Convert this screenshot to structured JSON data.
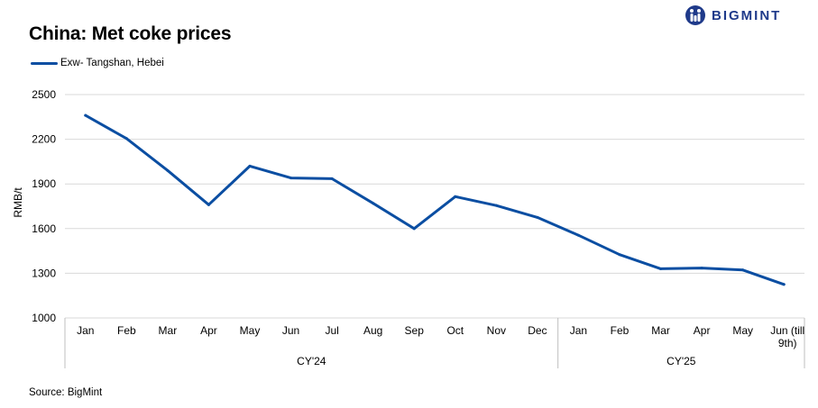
{
  "brand": {
    "name": "BIGMINT",
    "color": "#1f3a8a"
  },
  "title": "China: Met coke prices",
  "source": "Source: BigMint",
  "chart_data": {
    "type": "line",
    "title": "China: Met coke prices",
    "ylabel": "RMB/t",
    "xlabel": "",
    "ylim": [
      1000,
      2500
    ],
    "yticks": [
      1000,
      1300,
      1600,
      1900,
      2200,
      2500
    ],
    "grid": true,
    "legend_position": "top-left",
    "categories": [
      "Jan",
      "Feb",
      "Mar",
      "Apr",
      "May",
      "Jun",
      "Jul",
      "Aug",
      "Sep",
      "Oct",
      "Nov",
      "Dec",
      "Jan",
      "Feb",
      "Mar",
      "Apr",
      "May",
      "Jun (till 9th)"
    ],
    "category_groups": [
      {
        "label": "CY'24",
        "count": 12
      },
      {
        "label": "CY'25",
        "count": 6
      }
    ],
    "series": [
      {
        "name": "Exw- Tangshan, Hebei",
        "color": "#0b4ea2",
        "values": [
          2360,
          2205,
          1990,
          1760,
          2020,
          1940,
          1935,
          1770,
          1600,
          1815,
          1755,
          1675,
          1555,
          1425,
          1330,
          1335,
          1322,
          1225
        ]
      }
    ]
  }
}
